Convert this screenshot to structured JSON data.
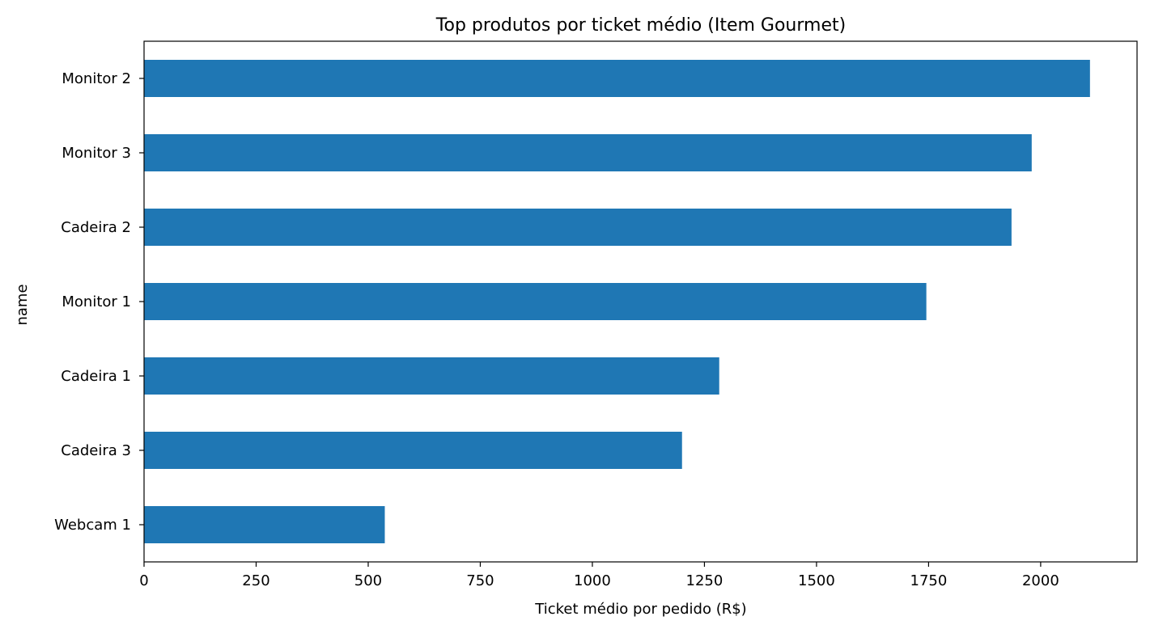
{
  "chart_data": {
    "type": "bar",
    "orientation": "horizontal",
    "title": "Top produtos por ticket médio (Item Gourmet)",
    "xlabel": "Ticket médio por pedido (R$)",
    "ylabel": "name",
    "categories": [
      "Monitor 2",
      "Monitor 3",
      "Cadeira 2",
      "Monitor 1",
      "Cadeira 1",
      "Cadeira 3",
      "Webcam 1"
    ],
    "values": [
      2110,
      1980,
      1935,
      1745,
      1283,
      1200,
      537
    ],
    "xlim": [
      0,
      2215
    ],
    "xticks": [
      0,
      250,
      500,
      750,
      1000,
      1250,
      1500,
      1750,
      2000
    ],
    "color": "#1f77b4",
    "grid": false,
    "legend": "none"
  }
}
